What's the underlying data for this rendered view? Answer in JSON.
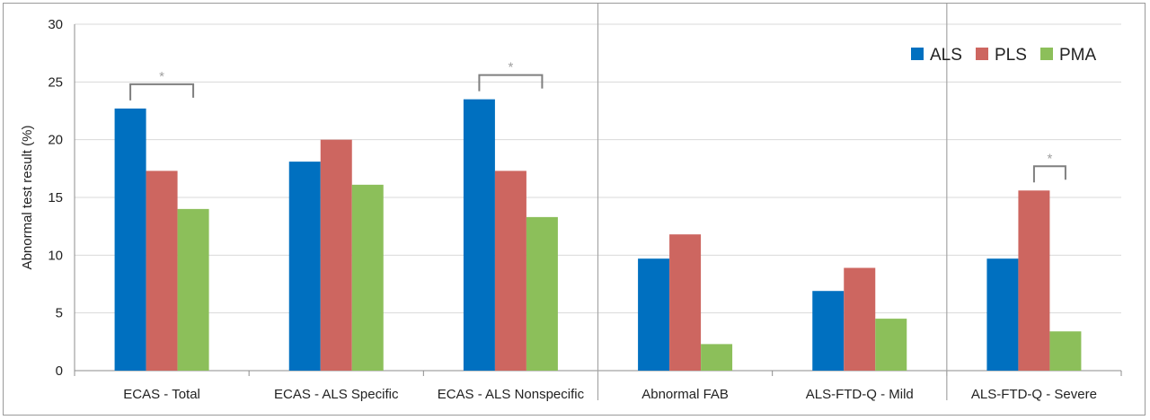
{
  "chart_data": {
    "type": "bar",
    "title": "",
    "xlabel": "",
    "ylabel": "Abnormal test result (%)",
    "ylim": [
      0,
      30
    ],
    "yticks": [
      0,
      5,
      10,
      15,
      20,
      25,
      30
    ],
    "grid": true,
    "legend_position": "top-right",
    "categories": [
      "ECAS - Total",
      "ECAS - ALS Specific",
      "ECAS - ALS Nonspecific",
      "Abnormal FAB",
      "ALS-FTD-Q - Mild",
      "ALS-FTD-Q - Severe"
    ],
    "series": [
      {
        "name": "ALS",
        "color": "#0070c0",
        "values": [
          22.7,
          18.1,
          23.5,
          9.7,
          6.9,
          9.7
        ]
      },
      {
        "name": "PLS",
        "color": "#cd6660",
        "values": [
          17.3,
          20.0,
          17.3,
          11.8,
          8.9,
          15.6
        ]
      },
      {
        "name": "PMA",
        "color": "#8cbf5a",
        "values": [
          14.0,
          16.1,
          13.3,
          2.3,
          4.5,
          3.4
        ]
      }
    ],
    "group_separators_after": [
      2,
      4
    ],
    "significance": [
      {
        "category": 0,
        "from_series": 0,
        "to_series": 2,
        "label": "*"
      },
      {
        "category": 2,
        "from_series": 0,
        "to_series": 2,
        "label": "*"
      },
      {
        "category": 5,
        "from_series": 1,
        "to_series": 2,
        "label": "*"
      }
    ]
  }
}
